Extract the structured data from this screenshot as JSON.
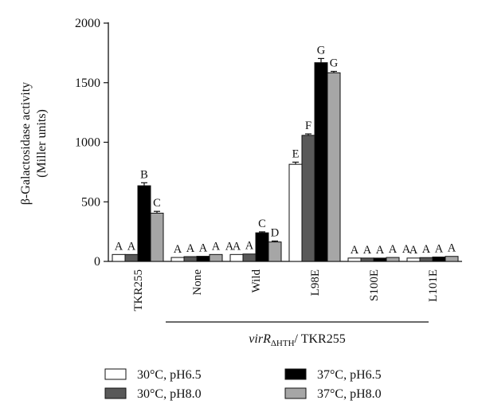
{
  "chart_data": {
    "type": "bar",
    "ylabel_line1": "β-Galactosidase activity",
    "ylabel_line2": "(Miller units)",
    "ylim": [
      0,
      2000
    ],
    "yticks": [
      "0",
      "500",
      "1000",
      "1500",
      "2000"
    ],
    "ytick_values": [
      0,
      500,
      1000,
      1500,
      2000
    ],
    "categories": [
      "TKR255",
      "None",
      "Wild",
      "L98E",
      "S100E",
      "L101E"
    ],
    "group_label": {
      "italic": "virR",
      "subscript": "ΔHTH",
      "suffix": "/ TKR255"
    },
    "series": [
      {
        "name": "30°C, pH6.5",
        "color": "#ffffff",
        "values": [
          58,
          33,
          58,
          815,
          28,
          28
        ],
        "errors": [
          0,
          0,
          0,
          18,
          0,
          0
        ],
        "labels": [
          "A",
          "A",
          "A",
          "E",
          "A",
          "A"
        ]
      },
      {
        "name": "30°C, pH8.0",
        "color": "#595959",
        "values": [
          58,
          40,
          62,
          1058,
          28,
          32
        ],
        "errors": [
          0,
          0,
          0,
          12,
          0,
          0
        ],
        "labels": [
          "A",
          "A",
          "A",
          "F",
          "A",
          "A"
        ]
      },
      {
        "name": "37°C, pH6.5",
        "color": "#000000",
        "values": [
          635,
          43,
          240,
          1668,
          28,
          37
        ],
        "errors": [
          25,
          0,
          8,
          35,
          0,
          0
        ],
        "labels": [
          "B",
          "A",
          "C",
          "G",
          "A",
          "A"
        ]
      },
      {
        "name": "37°C, pH8.0",
        "color": "#a6a6a6",
        "values": [
          405,
          58,
          163,
          1583,
          33,
          42
        ],
        "errors": [
          15,
          0,
          8,
          12,
          0,
          0
        ],
        "labels": [
          "C",
          "A",
          "D",
          "G",
          "A",
          "A"
        ]
      }
    ],
    "extra_labels": [
      {
        "category": 1,
        "text": "A"
      },
      {
        "category": 4,
        "text": "A"
      }
    ],
    "legend": {
      "position": "bottom"
    },
    "grid": false
  }
}
